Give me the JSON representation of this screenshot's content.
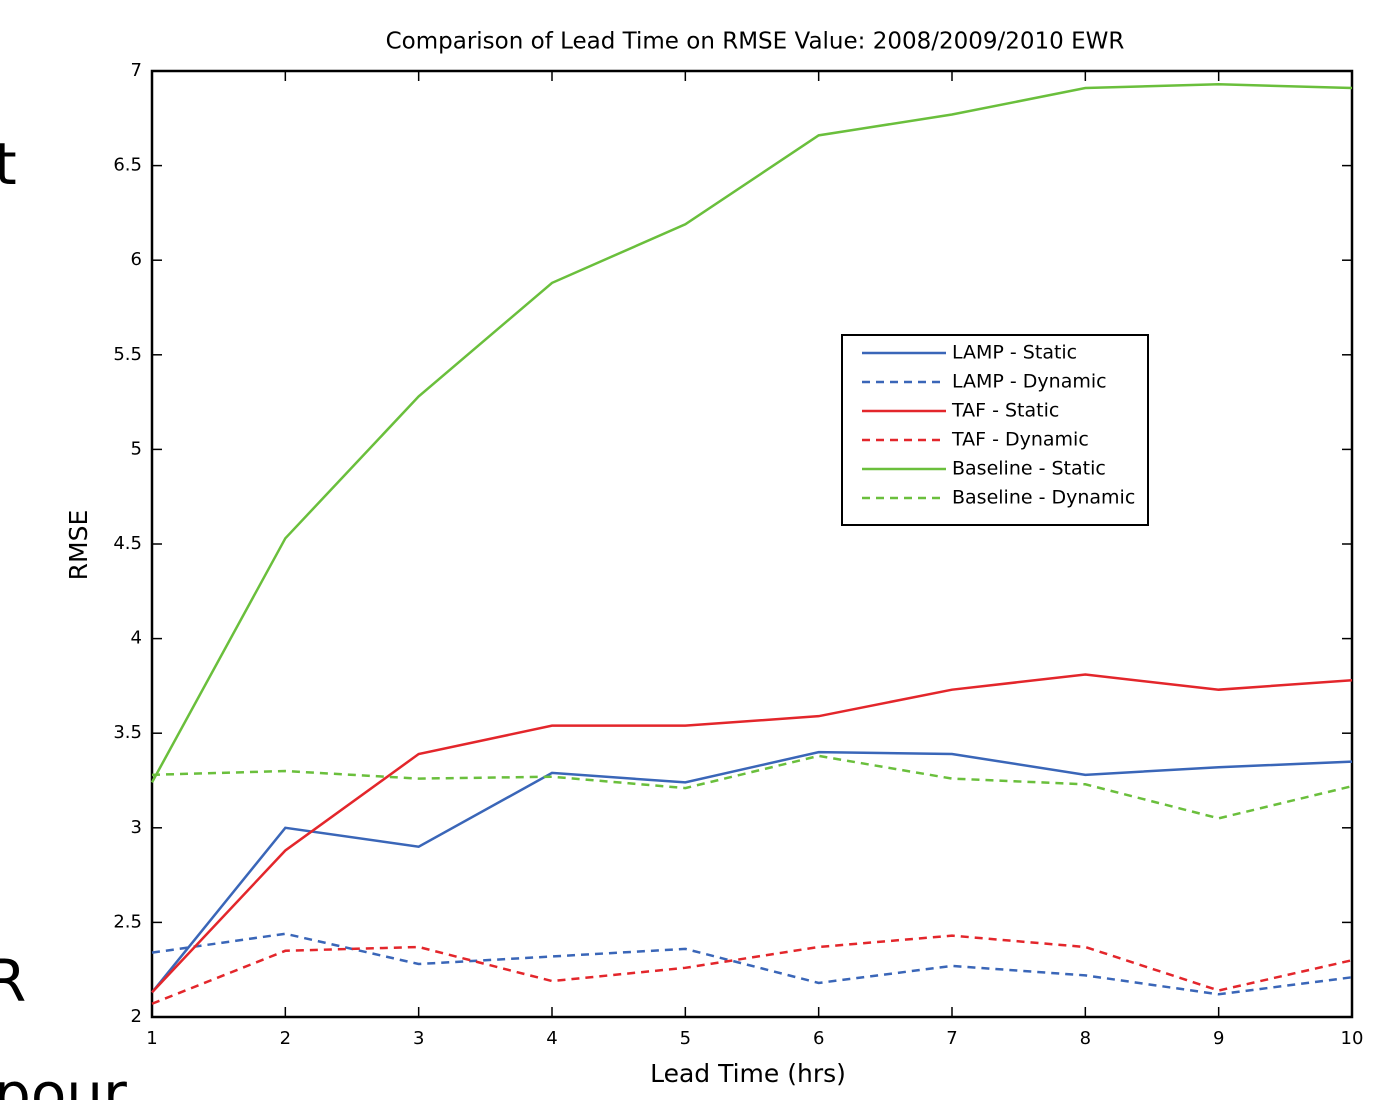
{
  "background_text": [
    "t",
    "R",
    "pour"
  ],
  "chart_data": {
    "type": "line",
    "title": "Comparison of Lead Time on RMSE Value: 2008/2009/2010 EWR",
    "x_label": "Lead Time (hrs)",
    "y_label": "RMSE",
    "x": [
      1,
      2,
      3,
      4,
      5,
      6,
      7,
      8,
      9,
      10
    ],
    "xlim": [
      1,
      10
    ],
    "xticks": [
      1,
      2,
      3,
      4,
      5,
      6,
      7,
      8,
      9,
      10
    ],
    "ylim": [
      2,
      7
    ],
    "yticks": [
      2,
      2.5,
      3,
      3.5,
      4,
      4.5,
      5,
      5.5,
      6,
      6.5,
      7
    ],
    "series": [
      {
        "name": "LAMP - Static",
        "color": "#3a66b8",
        "line_style": "solid",
        "values": [
          2.13,
          3.0,
          2.9,
          3.29,
          3.24,
          3.4,
          3.39,
          3.28,
          3.32,
          3.35
        ]
      },
      {
        "name": "LAMP - Dynamic",
        "color": "#3a66b8",
        "line_style": "dashed",
        "values": [
          2.34,
          2.44,
          2.28,
          2.32,
          2.36,
          2.18,
          2.27,
          2.22,
          2.12,
          2.21
        ]
      },
      {
        "name": "TAF - Static",
        "color": "#e3262b",
        "line_style": "solid",
        "values": [
          2.13,
          2.88,
          3.39,
          3.54,
          3.54,
          3.59,
          3.73,
          3.81,
          3.73,
          3.78
        ]
      },
      {
        "name": "TAF - Dynamic",
        "color": "#e3262b",
        "line_style": "dashed",
        "values": [
          2.07,
          2.35,
          2.37,
          2.19,
          2.26,
          2.37,
          2.43,
          2.37,
          2.14,
          2.3
        ]
      },
      {
        "name": "Baseline - Static",
        "color": "#6abf3c",
        "line_style": "solid",
        "values": [
          3.24,
          4.53,
          5.28,
          5.88,
          6.19,
          6.66,
          6.77,
          6.91,
          6.93,
          6.91
        ]
      },
      {
        "name": "Baseline - Dynamic",
        "color": "#6abf3c",
        "line_style": "dashed",
        "values": [
          3.28,
          3.3,
          3.26,
          3.27,
          3.21,
          3.38,
          3.26,
          3.23,
          3.05,
          3.22
        ]
      }
    ]
  }
}
